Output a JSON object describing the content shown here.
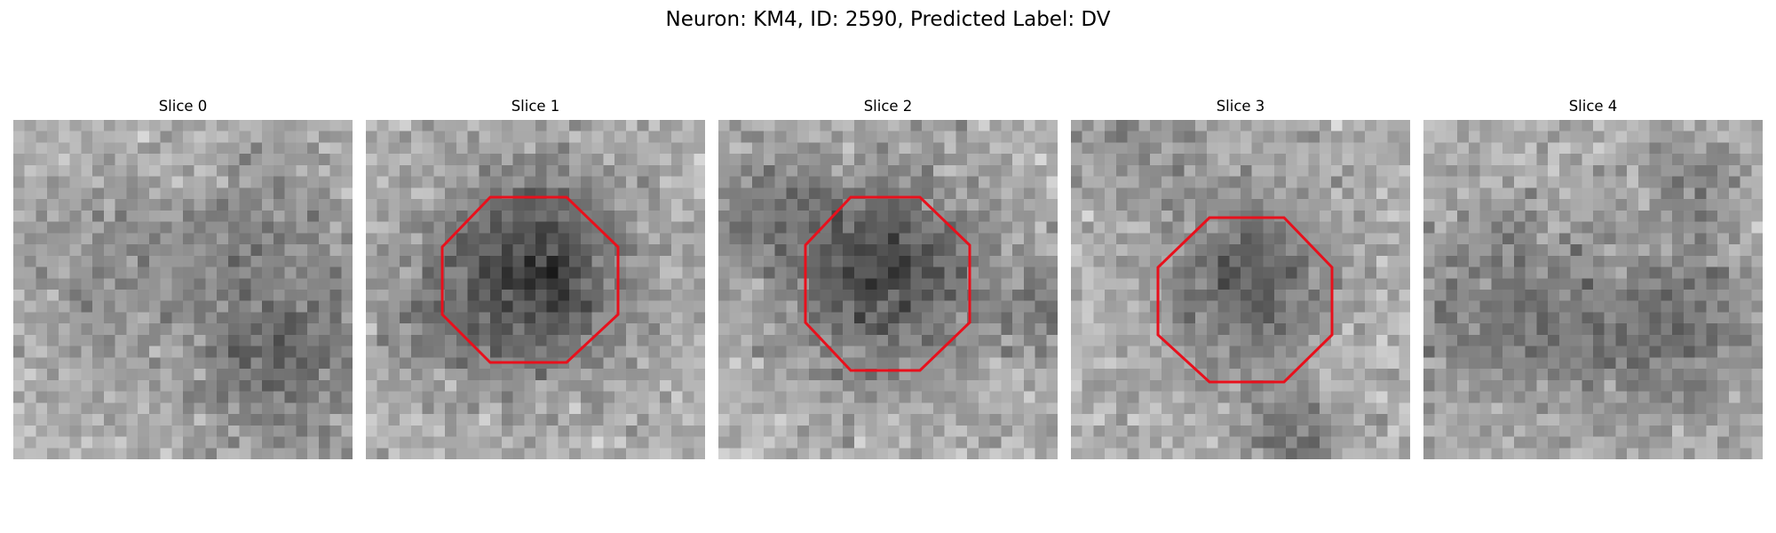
{
  "figure": {
    "title": "Neuron: KM4, ID: 2590, Predicted Label: DV",
    "roi_color": "#e8101c"
  },
  "panels": [
    {
      "title": "Slice 0",
      "image": "noisy grayscale microscopy patch, 30x30 pixels, darker streak lower right",
      "has_roi": false
    },
    {
      "title": "Slice 1",
      "image": "noisy grayscale microscopy patch, 30x30 pixels, dark cell body in center",
      "has_roi": true,
      "roi_shape": "octagon"
    },
    {
      "title": "Slice 2",
      "image": "noisy grayscale microscopy patch, 30x30 pixels, dark cell body in center",
      "has_roi": true,
      "roi_shape": "octagon"
    },
    {
      "title": "Slice 3",
      "image": "noisy grayscale microscopy patch, 30x30 pixels, dark cell body slightly right of center",
      "has_roi": true,
      "roi_shape": "octagon"
    },
    {
      "title": "Slice 4",
      "image": "noisy grayscale microscopy patch, 30x30 pixels, darker band in lower half",
      "has_roi": false
    }
  ]
}
